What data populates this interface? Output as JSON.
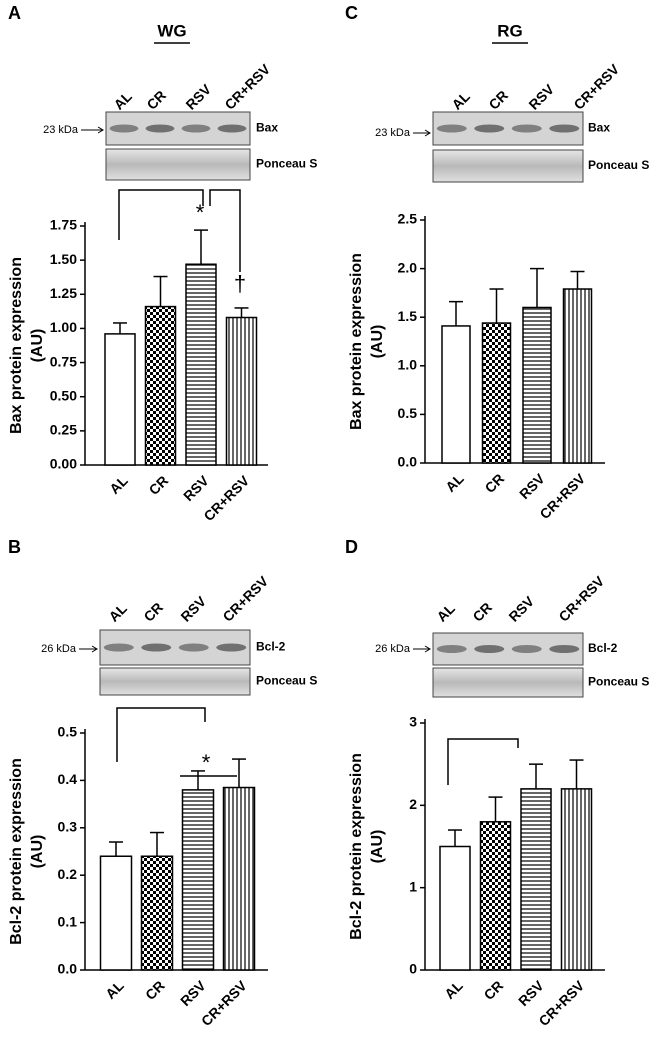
{
  "chart_data": [
    {
      "type": "bar",
      "label": "A",
      "title": "WG",
      "blot": {
        "lanes": [
          "AL",
          "CR",
          "RSV",
          "CR+RSV"
        ],
        "size": "23 kDa",
        "protein": "Bax",
        "loading": "Ponceau S"
      },
      "categories": [
        "AL",
        "CR",
        "RSV",
        "CR+RSV"
      ],
      "values": [
        0.96,
        1.16,
        1.47,
        1.08
      ],
      "errors": [
        0.08,
        0.22,
        0.25,
        0.07
      ],
      "patterns": [
        "white",
        "checker",
        "horizontal",
        "vertical"
      ],
      "color": "#000000",
      "y_label": [
        "Bax protein expression",
        "(AU)"
      ],
      "ylim": [
        0,
        1.75
      ],
      "yticks": [
        {
          "value": 0,
          "label": "0.00"
        },
        0.25,
        {
          "value": 0.5,
          "label": "0.50"
        },
        0.75,
        {
          "value": 1,
          "label": "1.00"
        },
        1.25,
        {
          "value": 1.5,
          "label": "1.50"
        },
        1.75
      ],
      "annotations": [
        "*",
        "†"
      ]
    },
    {
      "type": "bar",
      "label": "B",
      "blot": {
        "lanes": [
          "AL",
          "CR",
          "RSV",
          "CR+RSV"
        ],
        "size": "26 kDa",
        "protein": "Bcl-2",
        "loading": "Ponceau S"
      },
      "categories": [
        "AL",
        "CR",
        "RSV",
        "CR+RSV"
      ],
      "values": [
        0.24,
        0.24,
        0.38,
        0.385
      ],
      "errors": [
        0.03,
        0.05,
        0.04,
        0.06
      ],
      "patterns": [
        "white",
        "checker",
        "horizontal",
        "vertical"
      ],
      "color": "#000000",
      "y_label": [
        "Bcl-2 protein expression",
        "(AU)"
      ],
      "ylim": [
        0,
        0.5
      ],
      "yticks": [
        {
          "value": 0,
          "label": "0.0"
        },
        0.1,
        0.2,
        0.3,
        0.4,
        0.5
      ],
      "annotations": [
        "*"
      ]
    },
    {
      "type": "bar",
      "label": "C",
      "title": "RG",
      "blot": {
        "lanes": [
          "AL",
          "CR",
          "RSV",
          "CR+RSV"
        ],
        "size": "23 kDa",
        "protein": "Bax",
        "loading": "Ponceau S"
      },
      "categories": [
        "AL",
        "CR",
        "RSV",
        "CR+RSV"
      ],
      "values": [
        1.41,
        1.44,
        1.6,
        1.79
      ],
      "errors": [
        0.25,
        0.35,
        0.4,
        0.18
      ],
      "patterns": [
        "white",
        "checker",
        "horizontal",
        "vertical"
      ],
      "color": "#000000",
      "y_label": [
        "Bax protein expression",
        "(AU)"
      ],
      "ylim": [
        0,
        2.5
      ],
      "yticks": [
        {
          "value": 0,
          "label": "0.0"
        },
        0.5,
        {
          "value": 1,
          "label": "1.0"
        },
        1.5,
        {
          "value": 2,
          "label": "2.0"
        },
        2.5
      ]
    },
    {
      "type": "bar",
      "label": "D",
      "blot": {
        "lanes": [
          "AL",
          "CR",
          "RSV",
          "CR+RSV"
        ],
        "size": "26 kDa",
        "protein": "Bcl-2",
        "loading": "Ponceau S"
      },
      "categories": [
        "AL",
        "CR",
        "RSV",
        "CR+RSV"
      ],
      "values": [
        1.5,
        1.8,
        2.2,
        2.2
      ],
      "errors": [
        0.2,
        0.3,
        0.3,
        0.35
      ],
      "patterns": [
        "white",
        "checker",
        "horizontal",
        "vertical"
      ],
      "color": "#000000",
      "y_label": [
        "Bcl-2 protein expression",
        "(AU)"
      ],
      "ylim": [
        0,
        3
      ],
      "yticks": [
        0,
        1,
        2,
        3
      ]
    }
  ]
}
